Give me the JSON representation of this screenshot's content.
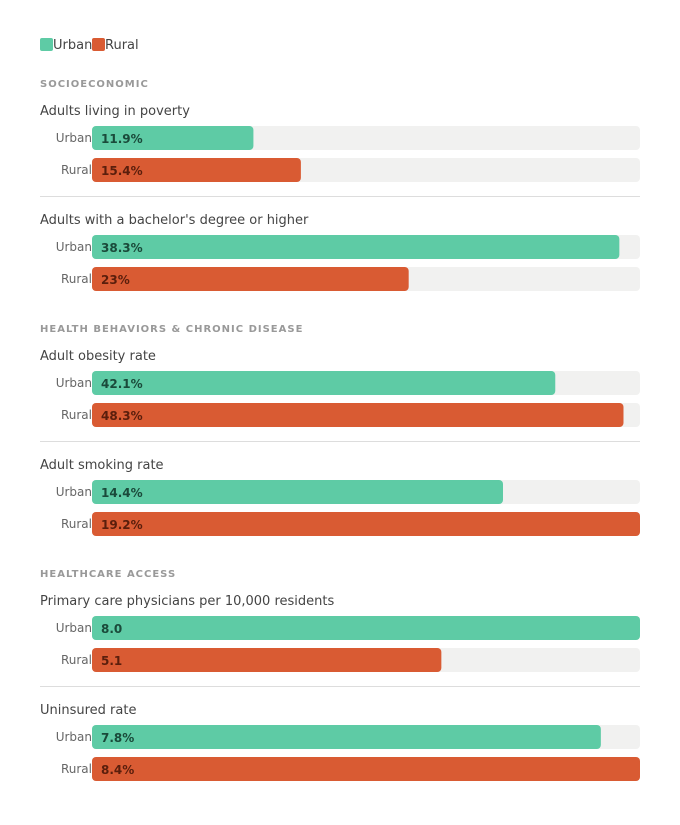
{
  "colors": {
    "urban": "#5ecba5",
    "rural": "#d95b33",
    "track": "#f1f1f0",
    "divider": "#dddddd",
    "section": "#999999",
    "metric": "#444444",
    "rowlabel": "#666666",
    "urbanValue": "#1a4a3a",
    "ruralValue": "#5a1e0c"
  },
  "chart_data": {
    "type": "bar",
    "orientation": "horizontal",
    "legend": [
      {
        "name": "Urban",
        "color": "#5ecba5"
      },
      {
        "name": "Rural",
        "color": "#d95b33"
      }
    ],
    "legend_position": "top-left",
    "grid": false,
    "sections": [
      {
        "title": "SOCIOECONOMIC",
        "metrics": [
          {
            "title": "Adults living in poverty",
            "rows": [
              {
                "label": "Urban",
                "value": 11.9,
                "display": "11.9%"
              },
              {
                "label": "Rural",
                "value": 15.4,
                "display": "15.4%"
              }
            ],
            "max": 40.4
          },
          {
            "title": "Adults with a bachelor's degree or higher",
            "rows": [
              {
                "label": "Urban",
                "value": 38.3,
                "display": "38.3%"
              },
              {
                "label": "Rural",
                "value": 23,
                "display": "23%"
              }
            ],
            "max": 39.8
          }
        ]
      },
      {
        "title": "HEALTH BEHAVIORS & CHRONIC DISEASE",
        "metrics": [
          {
            "title": "Adult obesity rate",
            "rows": [
              {
                "label": "Urban",
                "value": 42.1,
                "display": "42.1%"
              },
              {
                "label": "Rural",
                "value": 48.3,
                "display": "48.3%"
              }
            ],
            "max": 49.8
          },
          {
            "title": "Adult smoking rate",
            "rows": [
              {
                "label": "Urban",
                "value": 14.4,
                "display": "14.4%"
              },
              {
                "label": "Rural",
                "value": 19.2,
                "display": "19.2%"
              }
            ],
            "max": 19.2
          }
        ]
      },
      {
        "title": "HEALTHCARE ACCESS",
        "metrics": [
          {
            "title": "Primary care physicians per 10,000 residents",
            "rows": [
              {
                "label": "Urban",
                "value": 8.0,
                "display": "8.0"
              },
              {
                "label": "Rural",
                "value": 5.1,
                "display": "5.1"
              }
            ],
            "max": 8.0
          },
          {
            "title": "Uninsured rate",
            "rows": [
              {
                "label": "Urban",
                "value": 7.8,
                "display": "7.8%"
              },
              {
                "label": "Rural",
                "value": 8.4,
                "display": "8.4%"
              }
            ],
            "max": 8.4
          }
        ]
      }
    ]
  }
}
